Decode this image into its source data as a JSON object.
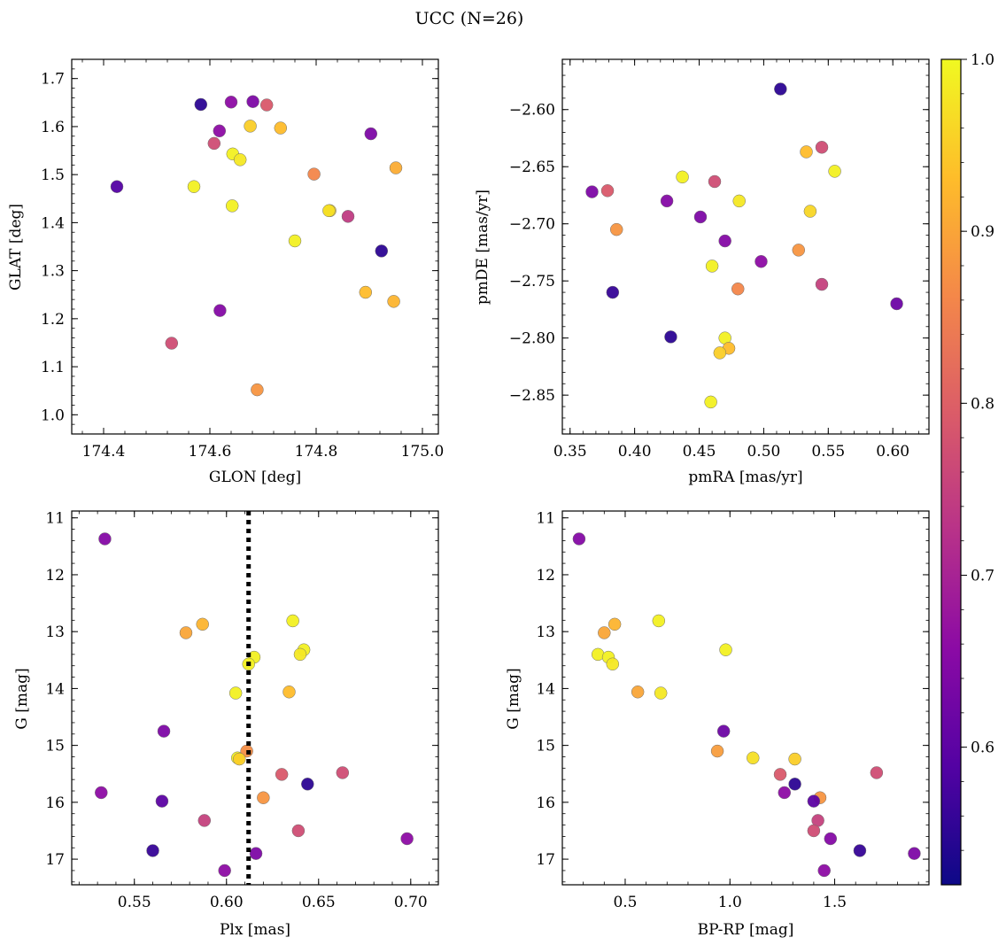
{
  "figure_title": "UCC (N=26)",
  "colormap_stops": [
    "#0d0887",
    "#5302a3",
    "#8b0aa5",
    "#b83289",
    "#db5c68",
    "#f48849",
    "#febd2a",
    "#f0f921"
  ],
  "colorbar": {
    "min": 0.52,
    "max": 1.0,
    "ticks": [
      0.6,
      0.7,
      0.8,
      0.9,
      1.0
    ],
    "tick_labels": [
      "0.6",
      "0.7",
      "0.8",
      "0.9",
      "1.0"
    ]
  },
  "chart_data": [
    {
      "type": "scatter",
      "title": "",
      "xlabel": "GLON [deg]",
      "ylabel": "GLAT [deg]",
      "xlim": [
        174.34,
        175.03
      ],
      "ylim": [
        0.96,
        1.74
      ],
      "y_inverted": false,
      "xticks": [
        174.4,
        174.6,
        174.8,
        175.0
      ],
      "xtick_labels": [
        "174.4",
        "174.6",
        "174.8",
        "175.0"
      ],
      "yticks": [
        1.0,
        1.1,
        1.2,
        1.3,
        1.4,
        1.5,
        1.6,
        1.7
      ],
      "ytick_labels": [
        "1.0",
        "1.1",
        "1.2",
        "1.3",
        "1.4",
        "1.5",
        "1.6",
        "1.7"
      ],
      "points": [
        {
          "x": 174.425,
          "y": 1.475,
          "c": 0.59
        },
        {
          "x": 174.583,
          "y": 1.646,
          "c": 0.55
        },
        {
          "x": 174.64,
          "y": 1.651,
          "c": 0.66
        },
        {
          "x": 174.681,
          "y": 1.652,
          "c": 0.64
        },
        {
          "x": 174.707,
          "y": 1.645,
          "c": 0.79
        },
        {
          "x": 174.618,
          "y": 1.591,
          "c": 0.66
        },
        {
          "x": 174.608,
          "y": 1.565,
          "c": 0.77
        },
        {
          "x": 174.676,
          "y": 1.601,
          "c": 0.95
        },
        {
          "x": 174.733,
          "y": 1.597,
          "c": 0.93
        },
        {
          "x": 174.643,
          "y": 1.543,
          "c": 0.99
        },
        {
          "x": 174.657,
          "y": 1.531,
          "c": 0.98
        },
        {
          "x": 174.57,
          "y": 1.475,
          "c": 0.99
        },
        {
          "x": 174.642,
          "y": 1.435,
          "c": 0.99
        },
        {
          "x": 174.796,
          "y": 1.501,
          "c": 0.86
        },
        {
          "x": 174.903,
          "y": 1.585,
          "c": 0.64
        },
        {
          "x": 174.95,
          "y": 1.514,
          "c": 0.91
        },
        {
          "x": 174.826,
          "y": 1.425,
          "c": 0.96
        },
        {
          "x": 174.86,
          "y": 1.413,
          "c": 0.74
        },
        {
          "x": 174.76,
          "y": 1.362,
          "c": 0.99
        },
        {
          "x": 174.923,
          "y": 1.341,
          "c": 0.55
        },
        {
          "x": 174.893,
          "y": 1.255,
          "c": 0.93
        },
        {
          "x": 174.946,
          "y": 1.236,
          "c": 0.92
        },
        {
          "x": 174.619,
          "y": 1.217,
          "c": 0.65
        },
        {
          "x": 174.528,
          "y": 1.149,
          "c": 0.77
        },
        {
          "x": 174.689,
          "y": 1.052,
          "c": 0.88
        },
        {
          "x": 174.824,
          "y": 1.425,
          "c": 0.97
        }
      ]
    },
    {
      "type": "scatter",
      "title": "",
      "xlabel": "pmRA [mas/yr]",
      "ylabel": "pmDE [mas/yr]",
      "xlim": [
        0.344,
        0.628
      ],
      "ylim": [
        -2.884,
        -2.556
      ],
      "y_inverted": false,
      "xticks": [
        0.35,
        0.4,
        0.45,
        0.5,
        0.55,
        0.6
      ],
      "xtick_labels": [
        "0.35",
        "0.40",
        "0.45",
        "0.50",
        "0.55",
        "0.60"
      ],
      "yticks": [
        -2.85,
        -2.8,
        -2.75,
        -2.7,
        -2.65,
        -2.6
      ],
      "ytick_labels": [
        "−2.85",
        "−2.80",
        "−2.75",
        "−2.70",
        "−2.65",
        "−2.60"
      ],
      "points": [
        {
          "x": 0.513,
          "y": -2.582,
          "c": 0.55
        },
        {
          "x": 0.367,
          "y": -2.672,
          "c": 0.64
        },
        {
          "x": 0.379,
          "y": -2.671,
          "c": 0.79
        },
        {
          "x": 0.386,
          "y": -2.705,
          "c": 0.88
        },
        {
          "x": 0.383,
          "y": -2.76,
          "c": 0.56
        },
        {
          "x": 0.437,
          "y": -2.659,
          "c": 0.99
        },
        {
          "x": 0.425,
          "y": -2.68,
          "c": 0.65
        },
        {
          "x": 0.462,
          "y": -2.663,
          "c": 0.77
        },
        {
          "x": 0.481,
          "y": -2.68,
          "c": 0.98
        },
        {
          "x": 0.451,
          "y": -2.694,
          "c": 0.64
        },
        {
          "x": 0.47,
          "y": -2.715,
          "c": 0.65
        },
        {
          "x": 0.46,
          "y": -2.737,
          "c": 0.99
        },
        {
          "x": 0.498,
          "y": -2.733,
          "c": 0.66
        },
        {
          "x": 0.48,
          "y": -2.757,
          "c": 0.86
        },
        {
          "x": 0.533,
          "y": -2.637,
          "c": 0.93
        },
        {
          "x": 0.545,
          "y": -2.633,
          "c": 0.77
        },
        {
          "x": 0.555,
          "y": -2.654,
          "c": 0.99
        },
        {
          "x": 0.536,
          "y": -2.689,
          "c": 0.96
        },
        {
          "x": 0.527,
          "y": -2.723,
          "c": 0.88
        },
        {
          "x": 0.545,
          "y": -2.753,
          "c": 0.75
        },
        {
          "x": 0.603,
          "y": -2.77,
          "c": 0.62
        },
        {
          "x": 0.428,
          "y": -2.799,
          "c": 0.55
        },
        {
          "x": 0.47,
          "y": -2.8,
          "c": 0.99
        },
        {
          "x": 0.473,
          "y": -2.809,
          "c": 0.93
        },
        {
          "x": 0.466,
          "y": -2.813,
          "c": 0.95
        },
        {
          "x": 0.459,
          "y": -2.856,
          "c": 0.99
        }
      ]
    },
    {
      "type": "scatter",
      "title": "",
      "xlabel": "Plx [mas]",
      "ylabel": "G [mag]",
      "xlim": [
        0.516,
        0.715
      ],
      "ylim": [
        17.45,
        10.88
      ],
      "y_inverted": true,
      "vline": {
        "x": 0.612,
        "style": "dotted",
        "color": "#000000"
      },
      "xticks": [
        0.55,
        0.6,
        0.65,
        0.7
      ],
      "xtick_labels": [
        "0.55",
        "0.60",
        "0.65",
        "0.70"
      ],
      "yticks": [
        11,
        12,
        13,
        14,
        15,
        16,
        17
      ],
      "ytick_labels": [
        "11",
        "12",
        "13",
        "14",
        "15",
        "16",
        "17"
      ],
      "points": [
        {
          "x": 0.534,
          "y": 11.37,
          "c": 0.65
        },
        {
          "x": 0.578,
          "y": 13.02,
          "c": 0.9
        },
        {
          "x": 0.587,
          "y": 12.87,
          "c": 0.92
        },
        {
          "x": 0.636,
          "y": 12.81,
          "c": 0.99
        },
        {
          "x": 0.642,
          "y": 13.32,
          "c": 0.99
        },
        {
          "x": 0.64,
          "y": 13.4,
          "c": 0.98
        },
        {
          "x": 0.615,
          "y": 13.45,
          "c": 0.99
        },
        {
          "x": 0.612,
          "y": 13.57,
          "c": 0.99
        },
        {
          "x": 0.605,
          "y": 14.08,
          "c": 0.99
        },
        {
          "x": 0.634,
          "y": 14.06,
          "c": 0.93
        },
        {
          "x": 0.566,
          "y": 14.75,
          "c": 0.64
        },
        {
          "x": 0.611,
          "y": 15.1,
          "c": 0.87
        },
        {
          "x": 0.606,
          "y": 15.22,
          "c": 0.99
        },
        {
          "x": 0.607,
          "y": 15.24,
          "c": 0.95
        },
        {
          "x": 0.63,
          "y": 15.51,
          "c": 0.79
        },
        {
          "x": 0.663,
          "y": 15.48,
          "c": 0.77
        },
        {
          "x": 0.644,
          "y": 15.68,
          "c": 0.55
        },
        {
          "x": 0.62,
          "y": 15.92,
          "c": 0.88
        },
        {
          "x": 0.532,
          "y": 15.83,
          "c": 0.66
        },
        {
          "x": 0.565,
          "y": 15.98,
          "c": 0.6
        },
        {
          "x": 0.588,
          "y": 16.32,
          "c": 0.75
        },
        {
          "x": 0.639,
          "y": 16.5,
          "c": 0.77
        },
        {
          "x": 0.698,
          "y": 16.64,
          "c": 0.66
        },
        {
          "x": 0.56,
          "y": 16.85,
          "c": 0.56
        },
        {
          "x": 0.616,
          "y": 16.9,
          "c": 0.64
        },
        {
          "x": 0.599,
          "y": 17.2,
          "c": 0.66
        }
      ]
    },
    {
      "type": "scatter",
      "title": "",
      "xlabel": "BP-RP [mag]",
      "ylabel": "G [mag]",
      "xlim": [
        0.2,
        1.95
      ],
      "ylim": [
        17.45,
        10.88
      ],
      "y_inverted": true,
      "xticks": [
        0.5,
        1.0,
        1.5
      ],
      "xtick_labels": [
        "0.5",
        "1.0",
        "1.5"
      ],
      "yticks": [
        11,
        12,
        13,
        14,
        15,
        16,
        17
      ],
      "ytick_labels": [
        "11",
        "12",
        "13",
        "14",
        "15",
        "16",
        "17"
      ],
      "points": [
        {
          "x": 0.28,
          "y": 11.37,
          "c": 0.65
        },
        {
          "x": 0.4,
          "y": 13.02,
          "c": 0.9
        },
        {
          "x": 0.45,
          "y": 12.87,
          "c": 0.92
        },
        {
          "x": 0.37,
          "y": 13.4,
          "c": 0.99
        },
        {
          "x": 0.42,
          "y": 13.45,
          "c": 0.99
        },
        {
          "x": 0.44,
          "y": 13.57,
          "c": 0.98
        },
        {
          "x": 0.66,
          "y": 12.81,
          "c": 0.99
        },
        {
          "x": 0.98,
          "y": 13.32,
          "c": 0.99
        },
        {
          "x": 0.56,
          "y": 14.06,
          "c": 0.9
        },
        {
          "x": 0.67,
          "y": 14.08,
          "c": 0.98
        },
        {
          "x": 0.97,
          "y": 14.75,
          "c": 0.62
        },
        {
          "x": 0.94,
          "y": 15.1,
          "c": 0.89
        },
        {
          "x": 1.11,
          "y": 15.22,
          "c": 0.97
        },
        {
          "x": 1.31,
          "y": 15.24,
          "c": 0.95
        },
        {
          "x": 1.24,
          "y": 15.51,
          "c": 0.79
        },
        {
          "x": 1.31,
          "y": 15.68,
          "c": 0.55
        },
        {
          "x": 1.7,
          "y": 15.48,
          "c": 0.77
        },
        {
          "x": 1.26,
          "y": 15.83,
          "c": 0.66
        },
        {
          "x": 1.43,
          "y": 15.92,
          "c": 0.88
        },
        {
          "x": 1.4,
          "y": 15.98,
          "c": 0.6
        },
        {
          "x": 1.42,
          "y": 16.32,
          "c": 0.75
        },
        {
          "x": 1.4,
          "y": 16.5,
          "c": 0.77
        },
        {
          "x": 1.48,
          "y": 16.64,
          "c": 0.65
        },
        {
          "x": 1.62,
          "y": 16.85,
          "c": 0.56
        },
        {
          "x": 1.88,
          "y": 16.9,
          "c": 0.64
        },
        {
          "x": 1.45,
          "y": 17.2,
          "c": 0.66
        }
      ]
    }
  ]
}
